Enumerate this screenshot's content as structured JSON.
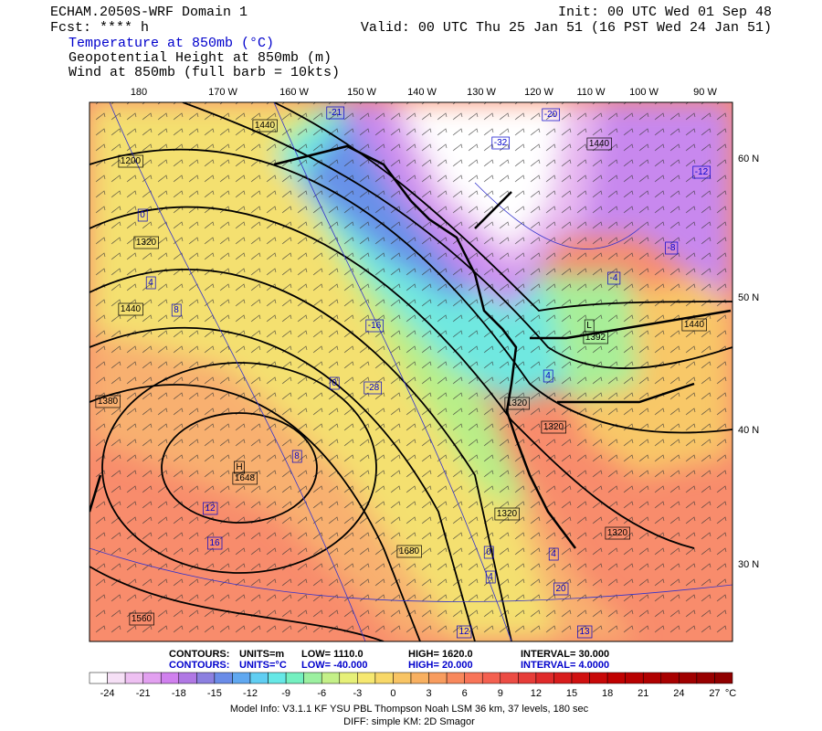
{
  "header": {
    "title": "ECHAM.2050S-WRF Domain 1",
    "forecast": "Fcst: **** h",
    "init": "Init: 00 UTC Wed 01 Sep 48",
    "valid": "Valid: 00 UTC Thu 25 Jan 51 (16 PST Wed 24 Jan 51)",
    "fields": [
      "Temperature at 850mb (°C)",
      "Geopotential Height at 850mb (m)",
      "Wind at 850mb (full barb = 10kts)"
    ]
  },
  "map": {
    "longitude_labels": [
      "180",
      "170 W",
      "160 W",
      "150 W",
      "140 W",
      "130 W",
      "120 W",
      "110 W",
      "100 W",
      "90 W"
    ],
    "latitude_labels": [
      "60 N",
      "50 N",
      "40 N",
      "30 N"
    ],
    "height_labels": [
      "1200",
      "1320",
      "1440",
      "1380",
      "H",
      "1648",
      "1560",
      "1680",
      "L",
      "1392",
      "1320",
      "1320",
      "1440",
      "1440",
      "1320",
      "1320",
      "1440"
    ],
    "temperature_labels": [
      "-21",
      "-32",
      "-20",
      "-16",
      "-12",
      "-8",
      "-4",
      "0",
      "0",
      "4",
      "8",
      "8",
      "12",
      "16",
      "12",
      "13",
      "0",
      "4",
      "4",
      "20",
      "-28",
      "4"
    ]
  },
  "contour_info": {
    "height": [
      "CONTOURS:",
      "UNITS=m",
      "LOW= 1110.0",
      "HIGH= 1620.0",
      "INTERVAL= 30.000"
    ],
    "temperature": [
      "CONTOURS:",
      "UNITS=°C",
      "LOW= -40.000",
      "HIGH= 20.000",
      "INTERVAL= 4.0000"
    ]
  },
  "colorbar": {
    "labels": [
      -24,
      -21,
      -18,
      -15,
      -12,
      -9,
      -6,
      -3,
      0,
      3,
      6,
      9,
      12,
      15,
      18,
      21,
      24,
      27
    ],
    "unit": "°C"
  },
  "footer": [
    "Model Info: V3.1.1 KF YSU PBL Thompson Noah LSM 36 km, 37 levels, 180 sec",
    "DIFF: simple KM: 2D Smagor"
  ]
}
